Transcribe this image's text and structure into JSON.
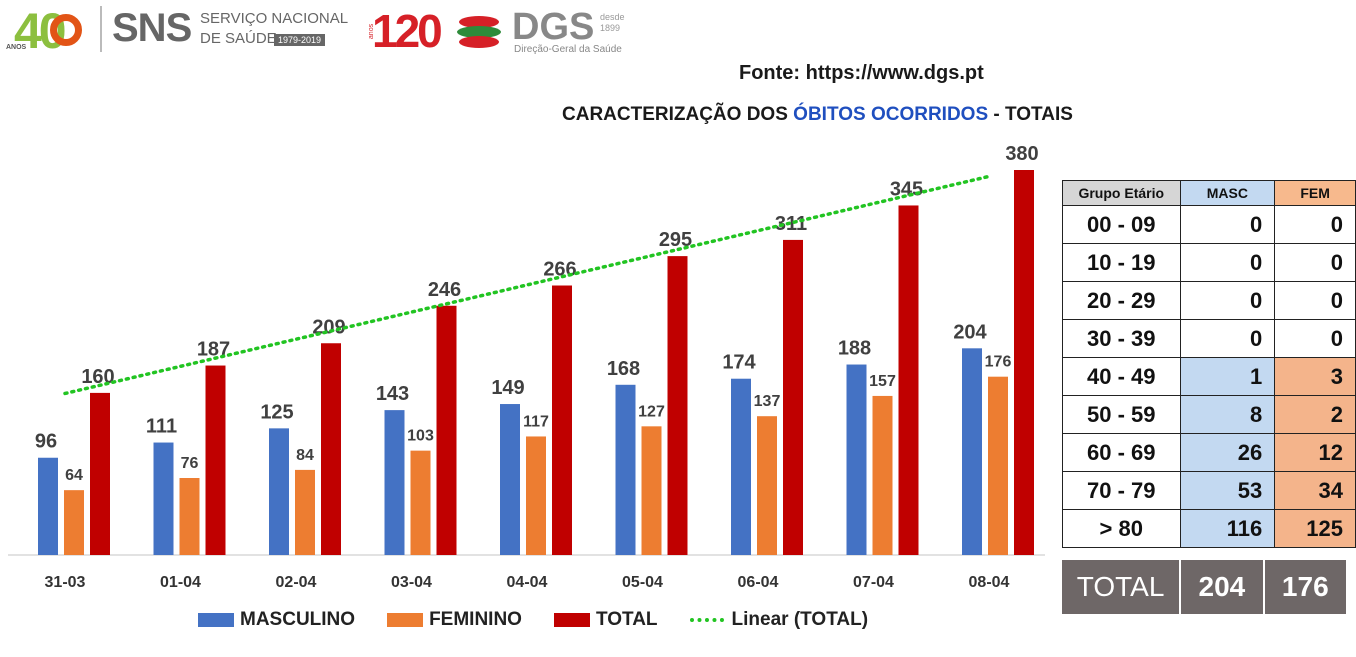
{
  "header": {
    "logo40": {
      "number": "40",
      "small": "ANOS"
    },
    "sns": {
      "acronym": "SNS",
      "line1": "SERVIÇO NACIONAL",
      "line2": "DE SAÚDE",
      "years": "1979-2019"
    },
    "logo120": {
      "number": "120",
      "small": "anos"
    },
    "dgs": {
      "acronym": "DGS",
      "desde": "desde",
      "year": "1899",
      "subtitle": "Direção-Geral da Saúde"
    }
  },
  "source": "Fonte: https://www.dgs.pt",
  "title": {
    "prefix": "CARACTERIZAÇÃO DOS ",
    "highlight": "ÓBITOS OCORRIDOS",
    "suffix": " - TOTAIS"
  },
  "colors": {
    "masculino": "#4472c4",
    "feminino": "#ed7d31",
    "total": "#c00000",
    "trend": "#22c422",
    "highlight": "#1f4fbf"
  },
  "chart_data": {
    "type": "bar",
    "title": "CARACTERIZAÇÃO DOS ÓBITOS OCORRIDOS - TOTAIS",
    "categories": [
      "31-03",
      "01-04",
      "02-04",
      "03-04",
      "04-04",
      "05-04",
      "06-04",
      "07-04",
      "08-04"
    ],
    "series": [
      {
        "name": "MASCULINO",
        "values": [
          96,
          111,
          125,
          143,
          149,
          168,
          174,
          188,
          204
        ]
      },
      {
        "name": "FEMININO",
        "values": [
          64,
          76,
          84,
          103,
          117,
          127,
          137,
          157,
          176
        ]
      },
      {
        "name": "TOTAL",
        "values": [
          160,
          187,
          209,
          246,
          266,
          295,
          311,
          345,
          380
        ]
      }
    ],
    "trendline": {
      "name": "Linear (TOTAL)",
      "type": "linear",
      "of_series": "TOTAL"
    },
    "ylim": [
      0,
      380
    ],
    "grid": false,
    "legend_position": "bottom"
  },
  "age_table": {
    "headers": [
      "Grupo Etário",
      "MASC",
      "FEM"
    ],
    "rows": [
      {
        "group": "00 - 09",
        "masc": "0",
        "fem": "0"
      },
      {
        "group": "10 - 19",
        "masc": "0",
        "fem": "0"
      },
      {
        "group": "20 - 29",
        "masc": "0",
        "fem": "0"
      },
      {
        "group": "30 - 39",
        "masc": "0",
        "fem": "0"
      },
      {
        "group": "40 - 49",
        "masc": "1",
        "fem": "3"
      },
      {
        "group": "50 - 59",
        "masc": "8",
        "fem": "2"
      },
      {
        "group": "60 - 69",
        "masc": "26",
        "fem": "12"
      },
      {
        "group": "70 - 79",
        "masc": "53",
        "fem": "34"
      },
      {
        "group": "> 80",
        "masc": "116",
        "fem": "125"
      }
    ],
    "total": {
      "label": "TOTAL",
      "masc": "204",
      "fem": "176"
    }
  }
}
